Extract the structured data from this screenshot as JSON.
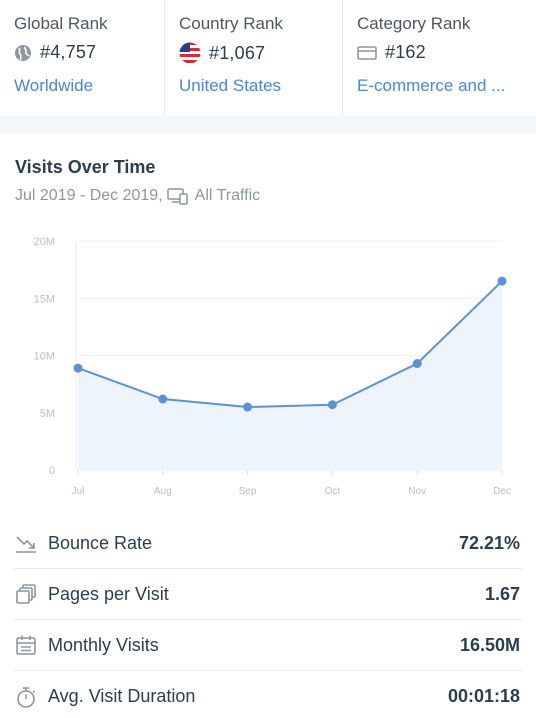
{
  "ranks": [
    {
      "title": "Global Rank",
      "icon": "globe-icon",
      "value": "#4,757",
      "link": "Worldwide"
    },
    {
      "title": "Country Rank",
      "icon": "us-flag-icon",
      "value": "#1,067",
      "link": "United States"
    },
    {
      "title": "Category Rank",
      "icon": "category-icon",
      "value": "#162",
      "link": "E-commerce and ..."
    }
  ],
  "visits": {
    "title": "Visits Over Time",
    "date_range": "Jul 2019 - Dec 2019,",
    "traffic_icon": "devices-icon",
    "traffic": "All Traffic"
  },
  "chart_data": {
    "type": "line",
    "categories": [
      "Jul",
      "Aug",
      "Sep",
      "Oct",
      "Nov",
      "Dec"
    ],
    "values": [
      8.9,
      6.2,
      5.5,
      5.7,
      9.3,
      16.5
    ],
    "y_ticks": [
      "0",
      "5M",
      "10M",
      "15M",
      "20M"
    ],
    "ylim": [
      0,
      20
    ],
    "title": "",
    "xlabel": "",
    "ylabel": "",
    "grid": true,
    "line_color": "#5a93d8",
    "fill_color": "#eef4fc"
  },
  "metrics": [
    {
      "icon": "bounce-rate-icon",
      "label": "Bounce Rate",
      "value": "72.21%"
    },
    {
      "icon": "pages-icon",
      "label": "Pages per Visit",
      "value": "1.67"
    },
    {
      "icon": "calendar-icon",
      "label": "Monthly Visits",
      "value": "16.50M"
    },
    {
      "icon": "stopwatch-icon",
      "label": "Avg. Visit Duration",
      "value": "00:01:18"
    }
  ]
}
